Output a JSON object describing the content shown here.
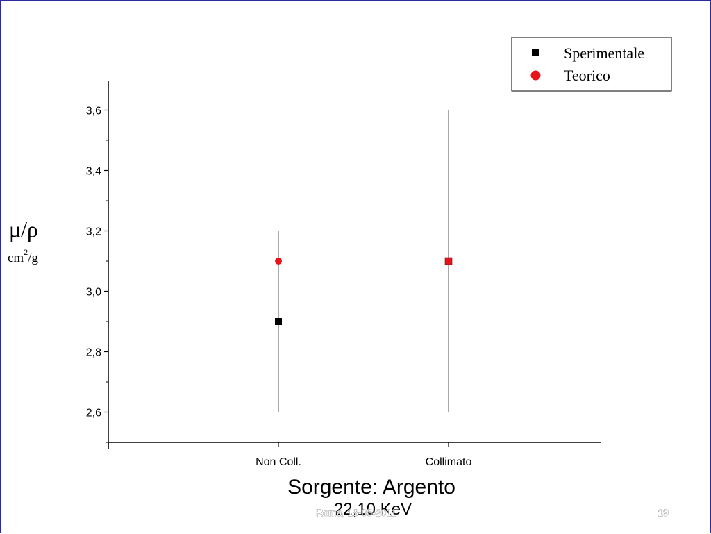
{
  "slide": {
    "footer_left": "Roma, 18-05-2011",
    "page_number": "19"
  },
  "chart_data": {
    "type": "scatter",
    "categories": [
      "Non Coll.",
      "Collimato"
    ],
    "series": [
      {
        "name": "Sperimentale",
        "marker": "square",
        "color": "#000000",
        "values": [
          2.9,
          3.1
        ],
        "error_low": [
          2.6,
          2.6
        ],
        "error_high": [
          3.2,
          3.6
        ]
      },
      {
        "name": "Teorico",
        "marker": "circle",
        "color": "#e8141b",
        "values": [
          3.1,
          3.1
        ]
      }
    ],
    "xlabel": "Sorgente: Argento",
    "xlabel_sub": "22,10 KeV",
    "ylabel": "μ/ρ",
    "ylabel_unit_base": "cm",
    "ylabel_unit_sup": "2",
    "ylabel_unit_tail": "/g",
    "ylim": [
      2.5,
      3.7
    ],
    "yticks": [
      2.6,
      2.8,
      3.0,
      3.2,
      3.4,
      3.6
    ],
    "ytick_labels": [
      "2,6",
      "2,8",
      "3,0",
      "3,2",
      "3,4",
      "3,6"
    ],
    "legend_position": "top-right",
    "grid": false
  }
}
